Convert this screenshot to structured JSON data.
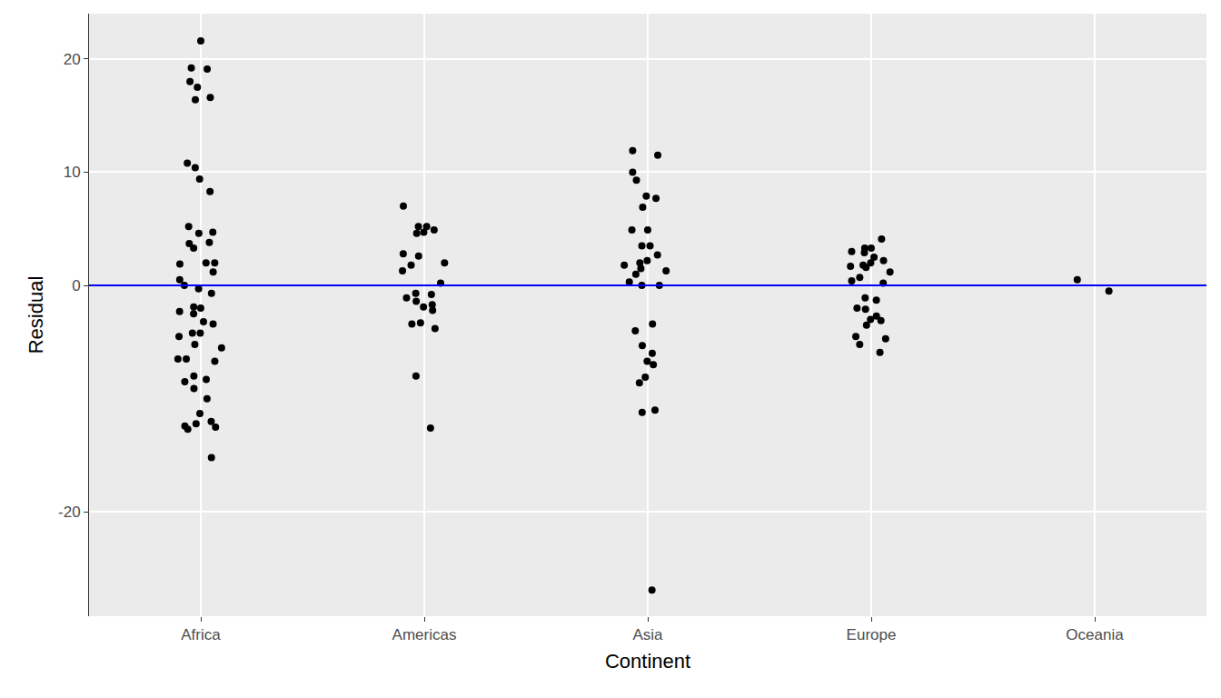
{
  "chart_data": {
    "type": "strip",
    "x_label": "Continent",
    "y_label": "Residual",
    "categories": [
      "Africa",
      "Americas",
      "Asia",
      "Europe",
      "Oceania"
    ],
    "values": [
      [
        21.6,
        19.2,
        19.1,
        18.0,
        17.5,
        16.6,
        16.4,
        10.8,
        10.4,
        9.4,
        8.3,
        5.2,
        4.7,
        4.6,
        3.8,
        3.7,
        3.3,
        2.0,
        2.0,
        1.9,
        1.2,
        0.5,
        0.0,
        -0.3,
        -0.7,
        -1.9,
        -2.0,
        -2.3,
        -2.5,
        -3.2,
        -3.4,
        -4.2,
        -4.2,
        -4.5,
        -5.2,
        -5.5,
        -6.5,
        -6.5,
        -6.7,
        -8.0,
        -8.3,
        -8.5,
        -9.1,
        -10.0,
        -11.3,
        -12.0,
        -12.2,
        -12.4,
        -12.5,
        -12.7,
        -15.2
      ],
      [
        7.0,
        5.2,
        5.2,
        4.9,
        4.7,
        4.6,
        2.8,
        2.6,
        2.0,
        1.8,
        1.3,
        0.2,
        -0.7,
        -0.8,
        -1.1,
        -1.4,
        -1.7,
        -1.9,
        -2.2,
        -3.3,
        -3.4,
        -3.8,
        -8.0,
        -12.6
      ],
      [
        11.9,
        11.5,
        10.0,
        9.3,
        7.9,
        7.7,
        6.9,
        4.9,
        4.9,
        3.5,
        3.5,
        2.7,
        2.2,
        2.0,
        1.8,
        1.5,
        1.3,
        1.0,
        0.3,
        0.0,
        0.0,
        -3.4,
        -4.0,
        -5.3,
        -6.0,
        -6.7,
        -7.0,
        -8.1,
        -8.6,
        -11.0,
        -11.2,
        -26.9
      ],
      [
        4.1,
        3.3,
        3.3,
        3.0,
        2.9,
        2.5,
        2.2,
        2.0,
        1.8,
        1.7,
        1.6,
        1.2,
        0.7,
        0.4,
        0.2,
        -1.1,
        -1.3,
        -2.0,
        -2.1,
        -2.7,
        -3.0,
        -3.1,
        -3.5,
        -4.5,
        -4.7,
        -5.2,
        -5.9
      ],
      [
        0.5,
        -0.5
      ]
    ],
    "color": "#000000",
    "reference_line": {
      "value": 0,
      "color": "#0000ff"
    },
    "ylim": [
      -29.2,
      24.0
    ],
    "yticks": [
      -20,
      0,
      10,
      20
    ],
    "grid": true
  }
}
